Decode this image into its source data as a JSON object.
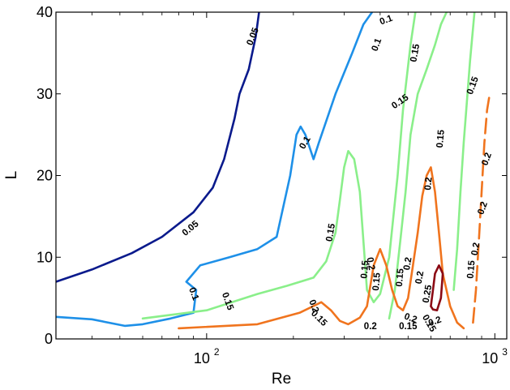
{
  "chart_data": {
    "type": "contour",
    "xlabel": "Re",
    "ylabel": "L",
    "xscale": "log",
    "xlim": [
      30,
      1100
    ],
    "ylim": [
      0,
      40
    ],
    "grid": false,
    "xticks": [
      {
        "value": 100,
        "base": "10",
        "exp": "2"
      },
      {
        "value": 1000,
        "base": "10",
        "exp": "3"
      }
    ],
    "yticks": [
      {
        "value": 0,
        "label": "0"
      },
      {
        "value": 10,
        "label": "10"
      },
      {
        "value": 20,
        "label": "20"
      },
      {
        "value": 30,
        "label": "30"
      },
      {
        "value": 40,
        "label": "40"
      }
    ],
    "level_colors": {
      "0.05": "#0a1a8c",
      "0.1": "#1e90e8",
      "0.15": "#8aef8a",
      "0.2": "#f0741e",
      "0.25": "#8b0a14"
    },
    "contours": [
      {
        "level": 0.05,
        "label": "0.05",
        "dashed": false,
        "points": [
          [
            30,
            7
          ],
          [
            40,
            8.5
          ],
          [
            55,
            10.5
          ],
          [
            70,
            12.5
          ],
          [
            90,
            15.5
          ],
          [
            105,
            18.5
          ],
          [
            115,
            22
          ],
          [
            125,
            27
          ],
          [
            130,
            30
          ],
          [
            140,
            33
          ],
          [
            148,
            37
          ],
          [
            152,
            40
          ]
        ]
      },
      {
        "level": 0.1,
        "label": "0.1",
        "dashed": false,
        "points": [
          [
            30,
            2.7
          ],
          [
            40,
            2.4
          ],
          [
            52,
            1.6
          ],
          [
            60,
            1.8
          ],
          [
            75,
            2.5
          ],
          [
            90,
            3.2
          ],
          [
            92,
            6
          ],
          [
            85,
            7
          ],
          [
            95,
            9
          ],
          [
            120,
            10
          ],
          [
            150,
            11
          ],
          [
            175,
            12.5
          ],
          [
            195,
            20
          ],
          [
            205,
            25
          ],
          [
            212,
            26
          ],
          [
            220,
            25
          ],
          [
            235,
            22
          ],
          [
            245,
            24
          ],
          [
            280,
            30
          ],
          [
            320,
            35
          ],
          [
            350,
            38.5
          ],
          [
            375,
            40
          ]
        ]
      },
      {
        "level": 0.15,
        "label": "0.15",
        "dashed": false,
        "points": [
          [
            60,
            2.5
          ],
          [
            100,
            3.5
          ],
          [
            150,
            5.5
          ],
          [
            190,
            6.5
          ],
          [
            235,
            7.5
          ],
          [
            260,
            9.5
          ],
          [
            280,
            13
          ],
          [
            290,
            17
          ],
          [
            300,
            21
          ],
          [
            310,
            23
          ],
          [
            325,
            22
          ],
          [
            340,
            18
          ],
          [
            350,
            12
          ],
          [
            360,
            6
          ],
          [
            380,
            4.5
          ],
          [
            400,
            5.5
          ],
          [
            430,
            10
          ],
          [
            460,
            20
          ],
          [
            480,
            28
          ],
          [
            510,
            36
          ],
          [
            530,
            40
          ]
        ]
      },
      {
        "level": 0.15,
        "label": "0.15",
        "dashed": false,
        "points": [
          [
            430,
            2.5
          ],
          [
            450,
            6
          ],
          [
            470,
            12
          ],
          [
            490,
            18
          ],
          [
            510,
            25
          ],
          [
            540,
            30
          ],
          [
            580,
            33
          ],
          [
            620,
            36
          ],
          [
            650,
            38.5
          ],
          [
            680,
            40
          ]
        ]
      },
      {
        "level": 0.15,
        "label": "0.15",
        "dashed": false,
        "points": [
          [
            720,
            6
          ],
          [
            740,
            11
          ],
          [
            760,
            18
          ],
          [
            780,
            24
          ],
          [
            800,
            29
          ],
          [
            820,
            34
          ],
          [
            850,
            40
          ]
        ]
      },
      {
        "level": 0.2,
        "label": "0.2",
        "dashed": false,
        "points": [
          [
            80,
            1.3
          ],
          [
            150,
            1.8
          ],
          [
            210,
            3.2
          ],
          [
            250,
            4.5
          ],
          [
            270,
            3.5
          ],
          [
            290,
            2.2
          ],
          [
            310,
            1.8
          ],
          [
            340,
            2.6
          ],
          [
            360,
            4
          ],
          [
            380,
            9
          ],
          [
            400,
            11
          ],
          [
            420,
            9
          ],
          [
            440,
            6
          ],
          [
            460,
            4
          ],
          [
            480,
            3.5
          ],
          [
            500,
            5
          ],
          [
            520,
            9
          ],
          [
            540,
            13
          ],
          [
            560,
            17.5
          ],
          [
            580,
            20
          ],
          [
            600,
            21
          ],
          [
            620,
            18
          ],
          [
            640,
            13
          ],
          [
            660,
            8
          ],
          [
            700,
            4
          ],
          [
            740,
            2
          ],
          [
            780,
            1.3
          ]
        ]
      },
      {
        "level": 0.2,
        "label": "0.2",
        "dashed": true,
        "points": [
          [
            840,
            2
          ],
          [
            860,
            6
          ],
          [
            880,
            12
          ],
          [
            900,
            18
          ],
          [
            920,
            24
          ],
          [
            940,
            28
          ],
          [
            960,
            30
          ]
        ]
      },
      {
        "level": 0.25,
        "label": "0.25",
        "dashed": false,
        "points": [
          [
            600,
            4
          ],
          [
            610,
            6
          ],
          [
            620,
            8
          ],
          [
            640,
            9
          ],
          [
            660,
            8
          ],
          [
            650,
            5
          ],
          [
            630,
            3.5
          ],
          [
            610,
            3.6
          ],
          [
            600,
            4
          ]
        ]
      }
    ],
    "labels": [
      {
        "text": "0.05",
        "value": [
          145,
          37
        ],
        "angle": -68
      },
      {
        "text": "0.05",
        "value": [
          88,
          13.5
        ],
        "angle": -40
      },
      {
        "text": "0.1",
        "value": [
          420,
          39
        ],
        "angle": -20
      },
      {
        "text": "0.1",
        "value": [
          390,
          36
        ],
        "angle": -70
      },
      {
        "text": "0.1",
        "value": [
          220,
          24
        ],
        "angle": -60
      },
      {
        "text": "0.1",
        "value": [
          90,
          5.5
        ],
        "angle": 70
      },
      {
        "text": "0.15",
        "value": [
          530,
          35
        ],
        "angle": -80
      },
      {
        "text": "0.15",
        "value": [
          470,
          29
        ],
        "angle": -35
      },
      {
        "text": "0.15",
        "value": [
          270,
          13
        ],
        "angle": -80
      },
      {
        "text": "0.15",
        "value": [
          118,
          4.6
        ],
        "angle": 70
      },
      {
        "text": "0.15",
        "value": [
          355,
          8.5
        ],
        "angle": -85
      },
      {
        "text": "0.15",
        "value": [
          390,
          7
        ],
        "angle": -85
      },
      {
        "text": "0.15",
        "value": [
          470,
          7.5
        ],
        "angle": -85
      },
      {
        "text": "0.15",
        "value": [
          650,
          24.5
        ],
        "angle": -85
      },
      {
        "text": "0.15",
        "value": [
          840,
          31
        ],
        "angle": -70
      },
      {
        "text": "0.15",
        "value": [
          245,
          2.5
        ],
        "angle": 45
      },
      {
        "text": "0.15",
        "value": [
          500,
          1.5
        ],
        "angle": 0
      },
      {
        "text": "0.15",
        "value": [
          590,
          1.9
        ],
        "angle": 60
      },
      {
        "text": "0.2",
        "value": [
          370,
          9.2
        ],
        "angle": 80
      },
      {
        "text": "0.2",
        "value": [
          235,
          4
        ],
        "angle": 70
      },
      {
        "text": "0.2",
        "value": [
          500,
          9.2
        ],
        "angle": -80
      },
      {
        "text": "0.2",
        "value": [
          590,
          19
        ],
        "angle": -85
      },
      {
        "text": "0.2",
        "value": [
          940,
          22
        ],
        "angle": -70
      },
      {
        "text": "0.2",
        "value": [
          910,
          16
        ],
        "angle": -70
      },
      {
        "text": "0.2",
        "value": [
          370,
          1.5
        ],
        "angle": 0
      },
      {
        "text": "0.2",
        "value": [
          510,
          2.5
        ],
        "angle": 20
      },
      {
        "text": "0.2",
        "value": [
          620,
          2.1
        ],
        "angle": -20
      },
      {
        "text": "0.2",
        "value": [
          550,
          7.5
        ],
        "angle": -80
      },
      {
        "text": "0.2",
        "value": [
          860,
          11
        ],
        "angle": -80
      },
      {
        "text": "0.25",
        "value": [
          585,
          5.5
        ],
        "angle": -80
      },
      {
        "text": "0.15",
        "value": [
          830,
          8.5
        ],
        "angle": -85
      }
    ]
  }
}
